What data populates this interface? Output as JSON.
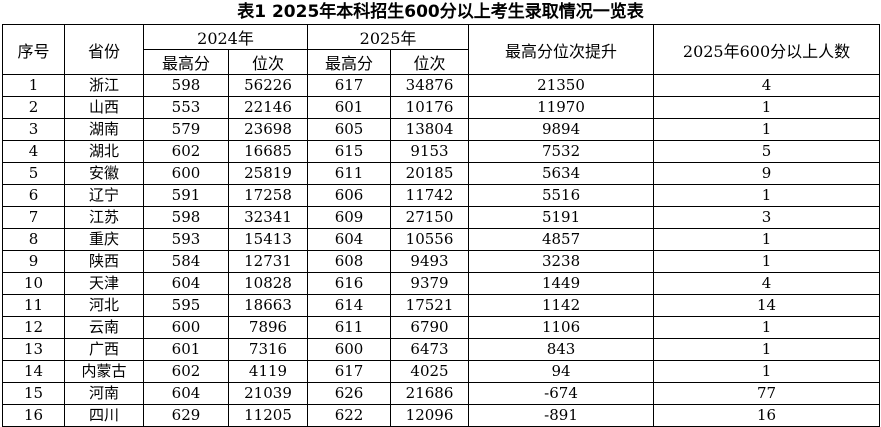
{
  "title": "表1  2025年本科招生600分以上考生录取情况一览表",
  "headers": {
    "index": "序号",
    "province": "省份",
    "y2024": "2024年",
    "y2025": "2025年",
    "top_score": "最高分",
    "rank": "位次",
    "rank_gain": "最高分位次提升",
    "count600": "2025年600分以上人数"
  },
  "rows": [
    {
      "no": "1",
      "prov": "浙江",
      "s24": "598",
      "r24": "56226",
      "s25": "617",
      "r25": "34876",
      "gain": "21350",
      "cnt": "4"
    },
    {
      "no": "2",
      "prov": "山西",
      "s24": "553",
      "r24": "22146",
      "s25": "601",
      "r25": "10176",
      "gain": "11970",
      "cnt": "1"
    },
    {
      "no": "3",
      "prov": "湖南",
      "s24": "579",
      "r24": "23698",
      "s25": "605",
      "r25": "13804",
      "gain": "9894",
      "cnt": "1"
    },
    {
      "no": "4",
      "prov": "湖北",
      "s24": "602",
      "r24": "16685",
      "s25": "615",
      "r25": "9153",
      "gain": "7532",
      "cnt": "5"
    },
    {
      "no": "5",
      "prov": "安徽",
      "s24": "600",
      "r24": "25819",
      "s25": "611",
      "r25": "20185",
      "gain": "5634",
      "cnt": "9"
    },
    {
      "no": "6",
      "prov": "辽宁",
      "s24": "591",
      "r24": "17258",
      "s25": "606",
      "r25": "11742",
      "gain": "5516",
      "cnt": "1"
    },
    {
      "no": "7",
      "prov": "江苏",
      "s24": "598",
      "r24": "32341",
      "s25": "609",
      "r25": "27150",
      "gain": "5191",
      "cnt": "3"
    },
    {
      "no": "8",
      "prov": "重庆",
      "s24": "593",
      "r24": "15413",
      "s25": "604",
      "r25": "10556",
      "gain": "4857",
      "cnt": "1"
    },
    {
      "no": "9",
      "prov": "陕西",
      "s24": "584",
      "r24": "12731",
      "s25": "608",
      "r25": "9493",
      "gain": "3238",
      "cnt": "1"
    },
    {
      "no": "10",
      "prov": "天津",
      "s24": "604",
      "r24": "10828",
      "s25": "616",
      "r25": "9379",
      "gain": "1449",
      "cnt": "4"
    },
    {
      "no": "11",
      "prov": "河北",
      "s24": "595",
      "r24": "18663",
      "s25": "614",
      "r25": "17521",
      "gain": "1142",
      "cnt": "14"
    },
    {
      "no": "12",
      "prov": "云南",
      "s24": "600",
      "r24": "7896",
      "s25": "611",
      "r25": "6790",
      "gain": "1106",
      "cnt": "1"
    },
    {
      "no": "13",
      "prov": "广西",
      "s24": "601",
      "r24": "7316",
      "s25": "600",
      "r25": "6473",
      "gain": "843",
      "cnt": "1"
    },
    {
      "no": "14",
      "prov": "内蒙古",
      "s24": "602",
      "r24": "4119",
      "s25": "617",
      "r25": "4025",
      "gain": "94",
      "cnt": "1"
    },
    {
      "no": "15",
      "prov": "河南",
      "s24": "604",
      "r24": "21039",
      "s25": "626",
      "r25": "21686",
      "gain": "-674",
      "cnt": "77"
    },
    {
      "no": "16",
      "prov": "四川",
      "s24": "629",
      "r24": "11205",
      "s25": "622",
      "r25": "12096",
      "gain": "-891",
      "cnt": "16"
    }
  ]
}
